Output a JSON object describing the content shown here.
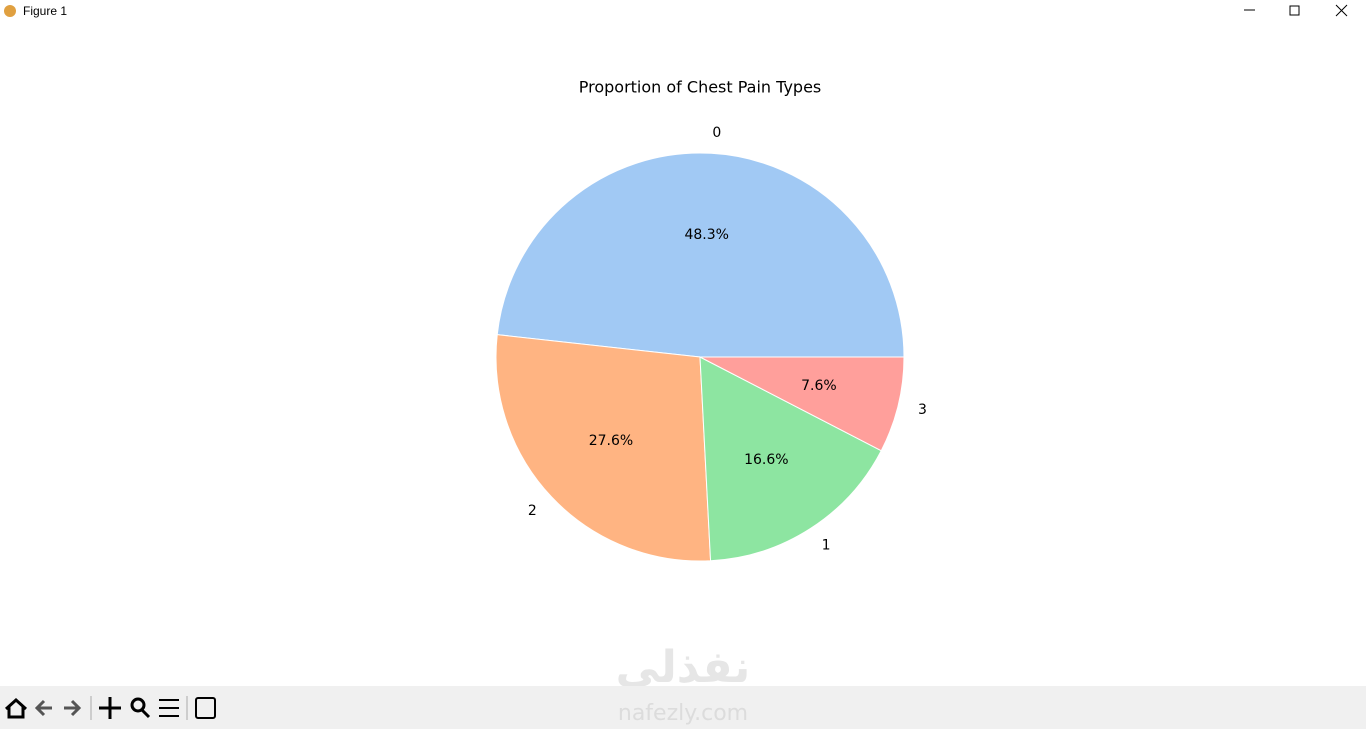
{
  "window": {
    "title": "Figure 1"
  },
  "chart_data": {
    "type": "pie",
    "title": "Proportion of Chest Pain Types",
    "categories": [
      "0",
      "2",
      "1",
      "3"
    ],
    "values": [
      48.3,
      27.6,
      16.6,
      7.6
    ],
    "value_labels": [
      "48.3%",
      "27.6%",
      "16.6%",
      "7.6%"
    ],
    "colors": [
      "#a1c9f4",
      "#ffb482",
      "#8de5a1",
      "#ff9f9b"
    ]
  },
  "watermark": {
    "arabic": "نفذلي",
    "latin": "nafezly.com"
  }
}
